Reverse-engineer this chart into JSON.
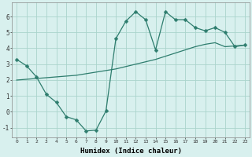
{
  "xlabel": "Humidex (Indice chaleur)",
  "line1_x": [
    0,
    1,
    2,
    3,
    4,
    5,
    6,
    7,
    8,
    9,
    10,
    11,
    12,
    13,
    14,
    15,
    16,
    17,
    18,
    19,
    20,
    21,
    22,
    23
  ],
  "line1_y": [
    3.3,
    2.9,
    2.2,
    1.1,
    0.6,
    -0.3,
    -0.5,
    -1.2,
    -1.15,
    0.05,
    4.6,
    5.7,
    6.3,
    5.8,
    3.9,
    6.3,
    5.8,
    5.8,
    5.3,
    5.1,
    5.3,
    5.0,
    4.1,
    4.2
  ],
  "line2_x": [
    0,
    1,
    2,
    3,
    4,
    5,
    6,
    7,
    8,
    9,
    10,
    11,
    12,
    13,
    14,
    15,
    16,
    17,
    18,
    19,
    20,
    21,
    22,
    23
  ],
  "line2_y": [
    2.0,
    2.05,
    2.1,
    2.15,
    2.2,
    2.25,
    2.3,
    2.4,
    2.5,
    2.6,
    2.7,
    2.85,
    3.0,
    3.15,
    3.3,
    3.5,
    3.7,
    3.9,
    4.1,
    4.25,
    4.35,
    4.1,
    4.15,
    4.2
  ],
  "line_color": "#2e7d6e",
  "bg_color": "#d8f0ee",
  "grid_color": "#aad4cc",
  "xlim": [
    -0.5,
    23.5
  ],
  "ylim": [
    -1.6,
    6.9
  ],
  "yticks": [
    -1,
    0,
    1,
    2,
    3,
    4,
    5,
    6
  ],
  "xticks": [
    0,
    1,
    2,
    3,
    4,
    5,
    6,
    7,
    8,
    9,
    10,
    11,
    12,
    13,
    14,
    15,
    16,
    17,
    18,
    19,
    20,
    21,
    22,
    23
  ],
  "marker": "D",
  "markersize": 2.5,
  "linewidth": 0.9
}
